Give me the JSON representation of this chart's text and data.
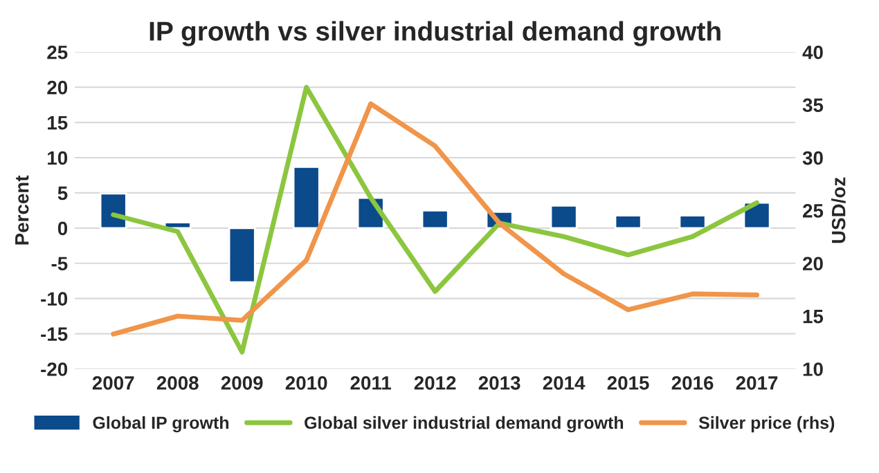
{
  "chart_data": {
    "type": "bar",
    "title": "IP growth vs silver industrial demand growth",
    "ylabel": "Percent",
    "y2label": "USD/oz",
    "categories": [
      "2007",
      "2008",
      "2009",
      "2010",
      "2011",
      "2012",
      "2013",
      "2014",
      "2015",
      "2016",
      "2017"
    ],
    "series": [
      {
        "name": "Global IP growth",
        "color": "#0b4a8b",
        "values": [
          4.9,
          0.8,
          -7.7,
          8.7,
          4.3,
          2.5,
          2.3,
          3.2,
          1.8,
          1.8,
          3.6
        ]
      },
      {
        "name": "Global silver industrial demand growth",
        "type": "line",
        "color": "#8cc63f",
        "values": [
          1.9,
          -0.5,
          -17.6,
          20,
          4.3,
          -9,
          0.7,
          -1.2,
          -3.8,
          -1.2,
          3.6
        ]
      },
      {
        "name": "Silver price (rhs)",
        "type": "line",
        "axis": "y2",
        "color": "#f0954a",
        "values": [
          13.3,
          15.0,
          14.6,
          20.3,
          35.1,
          31.1,
          23.8,
          19.0,
          15.6,
          17.1,
          17.0
        ]
      }
    ],
    "ylim": [
      -20,
      25
    ],
    "yticks": [
      -20,
      -15,
      -10,
      -5,
      0,
      5,
      10,
      15,
      20,
      25
    ],
    "y2lim": [
      10,
      40
    ],
    "y2ticks": [
      10,
      15,
      20,
      25,
      30,
      35,
      40
    ],
    "grid": "y",
    "legend": "bottom",
    "line_style": "solid",
    "marker": "none"
  }
}
